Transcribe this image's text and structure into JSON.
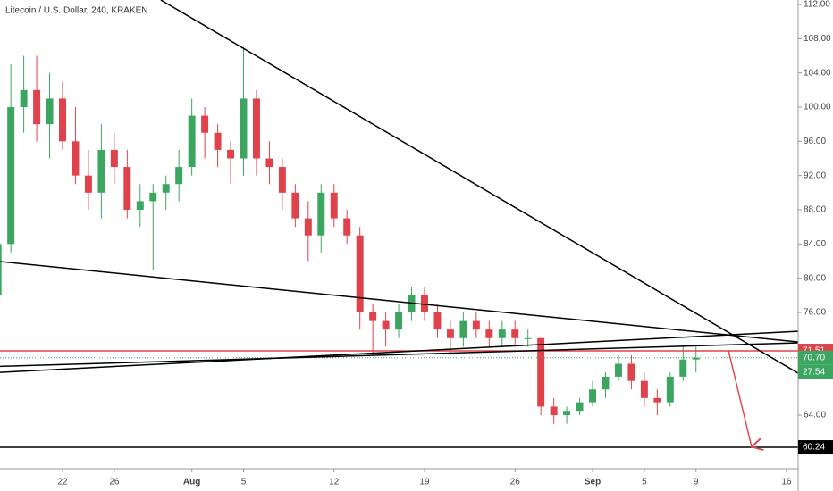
{
  "chart_data": {
    "type": "candlestick",
    "title": "Litecoin / U.S. Dollar, 240, KRAKEN",
    "up_color": "#3ca661",
    "down_color": "#e0424b",
    "candles": [
      [
        78,
        86,
        77,
        84
      ],
      [
        84,
        105,
        83,
        100
      ],
      [
        100,
        106,
        97,
        102
      ],
      [
        102,
        106,
        96,
        98
      ],
      [
        98,
        104,
        94,
        101
      ],
      [
        101,
        103,
        95,
        96
      ],
      [
        96,
        100,
        91,
        92
      ],
      [
        92,
        95,
        88,
        90
      ],
      [
        90,
        98,
        87,
        95
      ],
      [
        95,
        97,
        91,
        93
      ],
      [
        93,
        95,
        87,
        88
      ],
      [
        88,
        91,
        86,
        89
      ],
      [
        89,
        91,
        81,
        90
      ],
      [
        90,
        92,
        88,
        91
      ],
      [
        91,
        95,
        89,
        93
      ],
      [
        93,
        101,
        92,
        99
      ],
      [
        99,
        100,
        94,
        97
      ],
      [
        97,
        98,
        93,
        95
      ],
      [
        95,
        96,
        91,
        94
      ],
      [
        94,
        107,
        92,
        101
      ],
      [
        101,
        102,
        92,
        94
      ],
      [
        94,
        96,
        91,
        93
      ],
      [
        93,
        94,
        88,
        90
      ],
      [
        90,
        91,
        86,
        87
      ],
      [
        87,
        89,
        82,
        85
      ],
      [
        85,
        91,
        83,
        90
      ],
      [
        90,
        91,
        86,
        87
      ],
      [
        87,
        88,
        84,
        85
      ],
      [
        85,
        86,
        74,
        76
      ],
      [
        76,
        77,
        71,
        75
      ],
      [
        75,
        76,
        72,
        74
      ],
      [
        74,
        77,
        73,
        76
      ],
      [
        76,
        79,
        75,
        78
      ],
      [
        78,
        79,
        75,
        76
      ],
      [
        76,
        77,
        73,
        74
      ],
      [
        74,
        75,
        71,
        73
      ],
      [
        73,
        76,
        72,
        75
      ],
      [
        75,
        76,
        73,
        74
      ],
      [
        74,
        75,
        72,
        73
      ],
      [
        73,
        75,
        72,
        74
      ],
      [
        74,
        75,
        72,
        73
      ],
      [
        73,
        74,
        72,
        73
      ],
      [
        73,
        73,
        64,
        65
      ],
      [
        65,
        66,
        63,
        64
      ],
      [
        64,
        65,
        63,
        64.5
      ],
      [
        64.5,
        66,
        64,
        65.5
      ],
      [
        65.5,
        68,
        65,
        67
      ],
      [
        67,
        69,
        66,
        68.5
      ],
      [
        68.5,
        71,
        68,
        70
      ],
      [
        70,
        71,
        67,
        68
      ],
      [
        68,
        69,
        65,
        66
      ],
      [
        66,
        67,
        64,
        65.5
      ],
      [
        65.5,
        69,
        65,
        68.5
      ],
      [
        68.5,
        72,
        68,
        70.5
      ],
      [
        70.5,
        72,
        69,
        70.7
      ]
    ],
    "xlim": [
      0.16,
      61.9
    ],
    "xticks": [
      {
        "value": 5,
        "label": "22"
      },
      {
        "value": 9,
        "label": "26"
      },
      {
        "value": 15,
        "label": "Aug"
      },
      {
        "value": 19,
        "label": "5"
      },
      {
        "value": 26,
        "label": "12"
      },
      {
        "value": 33,
        "label": "19"
      },
      {
        "value": 40,
        "label": "26"
      },
      {
        "value": 46,
        "label": "Sep"
      },
      {
        "value": 50,
        "label": "5"
      },
      {
        "value": 54,
        "label": "9"
      },
      {
        "value": 61,
        "label": "16"
      }
    ],
    "ylim": [
      57.74,
      112.52
    ],
    "yticks": [
      {
        "value": 112,
        "label": "112.00"
      },
      {
        "value": 108,
        "label": "108.00"
      },
      {
        "value": 104,
        "label": "104.00"
      },
      {
        "value": 100,
        "label": "100.00"
      },
      {
        "value": 96,
        "label": "96.00"
      },
      {
        "value": 92,
        "label": "92.00"
      },
      {
        "value": 88,
        "label": "88.00"
      },
      {
        "value": 84,
        "label": "84.00"
      },
      {
        "value": 80,
        "label": "80.00"
      },
      {
        "value": 76,
        "label": "76.00"
      },
      {
        "value": 64,
        "label": "64.00"
      }
    ],
    "grid": false,
    "trendlines": [
      {
        "x": [
          12.6,
          61.9
        ],
        "y": [
          112.52,
          68.9
        ]
      },
      {
        "x": [
          0.16,
          61.9
        ],
        "y": [
          81.95,
          72.55
        ]
      },
      {
        "x": [
          0.16,
          61.9
        ],
        "y": [
          69.0,
          73.8
        ]
      },
      {
        "x": [
          0.16,
          61.9
        ],
        "y": [
          69.7,
          72.45
        ]
      }
    ],
    "levels": [
      {
        "value": 71.51,
        "color": "#e0424b"
      },
      {
        "value": 60.24,
        "color": "#000000"
      }
    ],
    "arrow": {
      "x": [
        56.5,
        58.3
      ],
      "y": [
        71.6,
        60.3
      ],
      "color": "#e0424b"
    },
    "price_badges": [
      {
        "value": 71.51,
        "color": "#e0424b"
      },
      {
        "value": {
          "value": 70.7,
          "label": "70.70"
        },
        "color": "#3ca661",
        "countdown": "27:54"
      },
      {
        "value": 60.24,
        "color": "#000000"
      }
    ]
  }
}
